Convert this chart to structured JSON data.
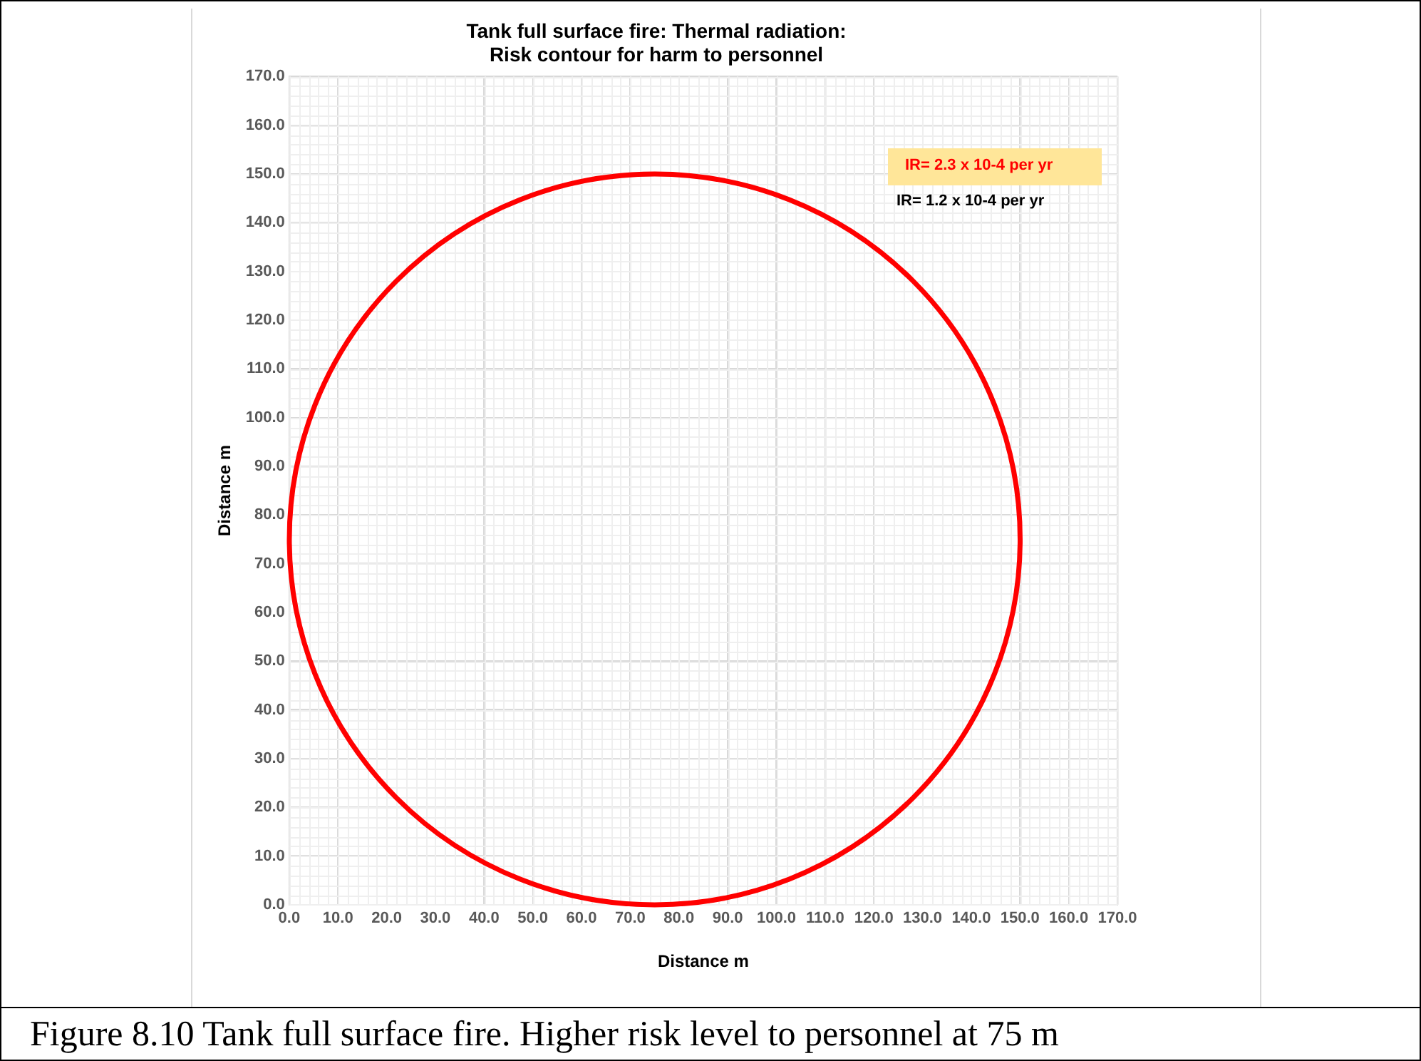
{
  "chart_data": {
    "type": "line",
    "title": "Tank full surface fire: Thermal radiation:\nRisk contour for harm to personnel",
    "xlabel": "Distance m",
    "ylabel": "Distance m",
    "xlim": [
      0,
      170
    ],
    "ylim": [
      0,
      170
    ],
    "xticks": [
      {
        "value": 0,
        "label": "0.0"
      },
      {
        "value": 10,
        "label": "10.0"
      },
      {
        "value": 20,
        "label": "20.0"
      },
      {
        "value": 30,
        "label": "30.0"
      },
      {
        "value": 40,
        "label": "40.0"
      },
      {
        "value": 50,
        "label": "50.0"
      },
      {
        "value": 60,
        "label": "60.0"
      },
      {
        "value": 70,
        "label": "70.0"
      },
      {
        "value": 80,
        "label": "80.0"
      },
      {
        "value": 90,
        "label": "90.0"
      },
      {
        "value": 100,
        "label": "100.0"
      },
      {
        "value": 110,
        "label": "110.0"
      },
      {
        "value": 120,
        "label": "120.0"
      },
      {
        "value": 130,
        "label": "130.0"
      },
      {
        "value": 140,
        "label": "140.0"
      },
      {
        "value": 150,
        "label": "150.0"
      },
      {
        "value": 160,
        "label": "160.0"
      },
      {
        "value": 170,
        "label": "170.0"
      }
    ],
    "yticks": [
      {
        "value": 0,
        "label": "0.0"
      },
      {
        "value": 10,
        "label": "10.0"
      },
      {
        "value": 20,
        "label": "20.0"
      },
      {
        "value": 30,
        "label": "30.0"
      },
      {
        "value": 40,
        "label": "40.0"
      },
      {
        "value": 50,
        "label": "50.0"
      },
      {
        "value": 60,
        "label": "60.0"
      },
      {
        "value": 70,
        "label": "70.0"
      },
      {
        "value": 80,
        "label": "80.0"
      },
      {
        "value": 90,
        "label": "90.0"
      },
      {
        "value": 100,
        "label": "100.0"
      },
      {
        "value": 110,
        "label": "110.0"
      },
      {
        "value": 120,
        "label": "120.0"
      },
      {
        "value": 130,
        "label": "130.0"
      },
      {
        "value": 140,
        "label": "140.0"
      },
      {
        "value": 150,
        "label": "150.0"
      },
      {
        "value": 160,
        "label": "160.0"
      },
      {
        "value": 170,
        "label": "170.0"
      }
    ],
    "grid": true,
    "annotations": [
      "IR= 2.3 x 10-4 per yr",
      "IR= 1.2 x 10-4 per yr",
      "Figure 8.10 Tank full surface fire. Higher risk level to personnel at 75 m"
    ]
  }
}
